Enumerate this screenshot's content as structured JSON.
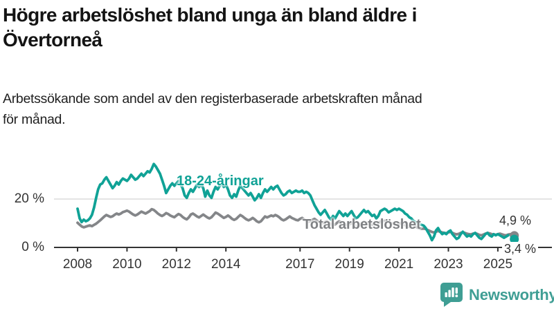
{
  "header": {
    "title_lines": [
      "Högre arbetslöshet bland unga än bland äldre i",
      "Övertorneå"
    ],
    "subtitle_lines": [
      "Arbetssökande som andel av den registerbaserade arbetskraften månad",
      "för månad."
    ]
  },
  "chart": {
    "series_labels": {
      "youth": "18-24-åringar",
      "total": "Total arbetslöshet"
    },
    "end_labels": {
      "total": "4,9 %",
      "youth": "3,4 %"
    },
    "colors": {
      "youth": "#10a296",
      "total": "#848689",
      "grid": "#dcdcdc",
      "axis": "#333333",
      "text": "#333333"
    }
  },
  "chart_data": {
    "type": "line",
    "title": "Högre arbetslöshet bland unga än bland äldre i Övertorneå",
    "subtitle": "Arbetssökande som andel av den registerbaserade arbetskraften månad för månad.",
    "unit": "%",
    "x_start": 2008.0,
    "x_step_years": 0.0833333,
    "x_ticks": [
      2008,
      2010,
      2012,
      2014,
      2017,
      2019,
      2021,
      2023,
      2025
    ],
    "y_ticks": [
      {
        "value": 0,
        "label": "0 %"
      },
      {
        "value": 20,
        "label": "20 %"
      }
    ],
    "ylim": [
      0,
      36
    ],
    "grid": "horizontal-at-20-only",
    "legend_position": "inline-labels-on-lines",
    "end_value_labels": [
      {
        "series": "Total arbetslöshet",
        "label": "4,9 %",
        "value": 4.9
      },
      {
        "series": "18-24-åringar",
        "label": "3,4 %",
        "value": 3.4
      }
    ],
    "series": [
      {
        "name": "Total arbetslöshet",
        "color": "#848689",
        "dashed_tail_points": 0,
        "end_dot": true,
        "values": [
          10.2,
          9.4,
          8.7,
          8.3,
          8.6,
          8.9,
          9.1,
          8.8,
          9.3,
          9.8,
          10.5,
          11.2,
          12.0,
          12.8,
          13.4,
          13.0,
          12.6,
          12.9,
          13.5,
          14.0,
          13.6,
          14.0,
          14.6,
          14.9,
          15.2,
          14.8,
          14.2,
          13.6,
          13.2,
          13.6,
          14.2,
          14.8,
          14.4,
          14.0,
          14.5,
          15.0,
          15.8,
          15.5,
          14.8,
          14.0,
          13.4,
          13.0,
          13.5,
          14.2,
          13.8,
          13.2,
          12.8,
          12.5,
          13.2,
          13.8,
          13.4,
          12.6,
          12.0,
          11.6,
          12.4,
          13.6,
          14.0,
          13.4,
          12.8,
          12.4,
          13.0,
          13.6,
          13.0,
          12.4,
          12.0,
          12.5,
          13.4,
          14.4,
          14.0,
          13.4,
          12.8,
          12.2,
          12.6,
          13.2,
          12.6,
          11.8,
          11.4,
          11.8,
          12.6,
          13.4,
          12.9,
          12.2,
          11.6,
          11.2,
          11.6,
          12.2,
          11.6,
          10.8,
          10.4,
          10.8,
          11.8,
          12.8,
          12.4,
          12.8,
          13.2,
          12.9,
          13.4,
          13.0,
          12.4,
          11.6,
          11.2,
          11.6,
          12.2,
          12.8,
          12.2,
          11.8,
          11.4,
          11.2,
          11.8,
          12.2,
          11.6,
          11.0,
          10.6,
          10.9,
          11.4,
          11.8,
          11.2,
          10.6,
          10.2,
          10.0,
          10.4,
          10.8,
          10.2,
          9.6,
          9.2,
          9.5,
          10.2,
          10.8,
          10.4,
          9.8,
          9.4,
          9.2,
          9.6,
          10.0,
          9.6,
          9.0,
          8.8,
          9.2,
          10.0,
          10.6,
          10.2,
          9.8,
          9.5,
          9.4,
          9.8,
          9.6,
          10.0,
          10.6,
          10.8,
          11.0,
          10.8,
          10.4,
          10.0,
          9.8,
          9.6,
          9.5,
          9.8,
          10.0,
          9.6,
          9.2,
          8.8,
          8.5,
          8.8,
          9.0,
          8.6,
          8.2,
          7.9,
          7.7,
          7.8,
          7.6,
          7.2,
          6.8,
          6.4,
          6.2,
          6.5,
          6.8,
          6.5,
          6.2,
          6.0,
          5.9,
          6.2,
          6.4,
          6.0,
          5.6,
          5.4,
          5.6,
          6.0,
          6.3,
          6.0,
          5.7,
          5.5,
          5.4,
          5.7,
          5.9,
          5.6,
          5.2,
          5.0,
          5.3,
          5.7,
          6.0,
          5.8,
          5.5,
          5.3,
          5.2,
          5.5,
          5.7,
          5.4,
          5.1,
          5.0,
          5.3,
          5.5,
          5.2,
          4.9
        ]
      },
      {
        "name": "18-24-åringar",
        "color": "#10a296",
        "dashed_tail_points": 5,
        "end_dot": true,
        "values": [
          16.0,
          12.0,
          10.5,
          11.5,
          10.8,
          11.2,
          12.0,
          13.5,
          16.5,
          20.5,
          24.0,
          26.0,
          26.5,
          28.0,
          29.0,
          27.5,
          26.0,
          24.5,
          25.5,
          27.0,
          26.0,
          27.5,
          28.5,
          28.0,
          27.5,
          28.5,
          30.0,
          29.0,
          28.0,
          28.5,
          29.5,
          30.5,
          29.5,
          30.5,
          31.5,
          31.0,
          32.5,
          34.5,
          33.5,
          32.0,
          30.5,
          28.0,
          25.5,
          22.5,
          24.0,
          25.5,
          26.5,
          25.5,
          26.5,
          27.5,
          26.0,
          24.5,
          21.5,
          20.5,
          22.5,
          24.0,
          23.0,
          24.5,
          26.0,
          25.0,
          26.0,
          24.5,
          21.0,
          23.5,
          21.5,
          20.5,
          23.0,
          25.0,
          24.0,
          25.5,
          26.5,
          25.0,
          26.0,
          24.0,
          21.5,
          20.5,
          22.0,
          21.0,
          23.5,
          25.5,
          24.5,
          23.5,
          22.5,
          21.5,
          22.5,
          21.0,
          19.5,
          20.5,
          22.0,
          20.5,
          22.5,
          24.0,
          23.0,
          24.0,
          25.0,
          24.0,
          25.0,
          25.5,
          24.0,
          22.5,
          21.5,
          22.0,
          23.0,
          23.5,
          22.5,
          23.0,
          23.5,
          23.0,
          23.0,
          23.5,
          22.5,
          23.0,
          22.5,
          21.5,
          19.5,
          17.5,
          16.0,
          14.5,
          13.5,
          14.5,
          15.5,
          14.0,
          12.5,
          11.5,
          13.0,
          12.0,
          13.5,
          15.0,
          14.0,
          13.0,
          14.0,
          13.0,
          14.0,
          15.0,
          13.5,
          12.0,
          12.5,
          13.5,
          14.5,
          15.5,
          14.5,
          15.0,
          14.0,
          13.0,
          13.5,
          12.0,
          13.0,
          15.0,
          15.5,
          16.0,
          15.5,
          14.5,
          15.0,
          15.5,
          16.0,
          15.5,
          16.0,
          15.5,
          15.0,
          14.0,
          13.5,
          12.5,
          12.0,
          11.0,
          10.5,
          10.0,
          9.5,
          9.3,
          9.0,
          8.0,
          6.5,
          5.0,
          3.0,
          4.5,
          7.0,
          8.0,
          6.5,
          5.5,
          6.0,
          5.5,
          6.5,
          7.0,
          5.5,
          4.5,
          3.5,
          4.0,
          5.5,
          6.5,
          5.5,
          4.5,
          5.0,
          4.5,
          5.5,
          6.0,
          5.0,
          4.0,
          3.5,
          4.5,
          5.5,
          6.0,
          5.0,
          4.5,
          5.5,
          5.0,
          5.5,
          5.0,
          4.5,
          4.0,
          4.5,
          5.0,
          4.5,
          4.0,
          3.4
        ]
      }
    ]
  },
  "footer": {
    "brand": "Newsworthy",
    "logo_icon": "bar-chart-speech-bubble-icon",
    "brand_color": "#3f9e94"
  }
}
